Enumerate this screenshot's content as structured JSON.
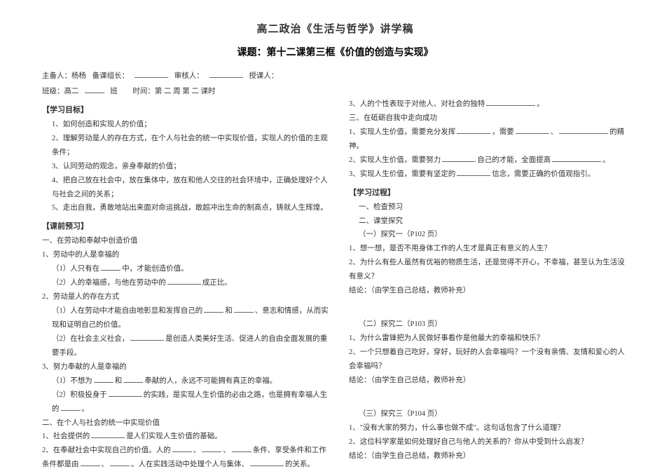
{
  "title": "高二政治《生活与哲学》讲学稿",
  "subtitle": "课题：第十二课第三框《价值的创造与实现》",
  "meta": {
    "row1_a": "主备人：杨杨",
    "row1_b": "备课组长：",
    "row1_c": "审核人：",
    "row1_d": "授课人：",
    "row2_a": "班级：高二",
    "row2_b": "班",
    "row2_c": "时间：第 二 周   第  二  课时"
  },
  "left": {
    "h_goal": "【学习目标】",
    "g1": "1、如何创造和实现人的价值；",
    "g2": "2、理解劳动是人的存在方式，在个人与社会的统一中实现价值，实现人的价值的主观条件；",
    "g3": "3、认同劳动的观念，亲身奉献的价值；",
    "g4": "4、把自己放在社会中，放在集体中，放在和他人交往的社会环境中，正确处理好个人与社会之间的关系；",
    "g5": "5、走出自我，勇敢地站出来面对命运挑战，敢超冲出生命的制高点，铸就人生辉煌。",
    "h_pre": "【课前预习】",
    "s1": "一、在劳动和奉献中创造价值",
    "s1_1": "1、劳动中的人是幸福的",
    "s1_1_1": "（1）人只有在",
    "s1_1_1b": "中，才能创造价值。",
    "s1_1_2a": "（2）人的幸福感，与他在劳动中的",
    "s1_1_2b": "成正比。",
    "s1_2": "2、劳动是人的存在方式",
    "s1_2_1a": "（1）人在劳动中才能自由地彰显和发挥自己的",
    "s1_2_1b": "和",
    "s1_2_1c": "、意志和情感，从而实现和证明自己的价值。",
    "s1_2_2a": "（2）在社会主义社会，",
    "s1_2_2b": "是创造人类美好生活、促进人的自由全面发展的重要手段。",
    "s1_3": "3、努力奉献的人是幸福的",
    "s1_3_1a": "（1）不想为",
    "s1_3_1b": "和",
    "s1_3_1c": "奉献的人，永远不可能拥有真正的幸福。",
    "s1_3_2a": "（2）积极投身于",
    "s1_3_2b": "的实践，是实现人生价值的必由之路，也是拥有幸福人生的",
    "s1_3_2c": "。",
    "s2": "二、在个人与社会的统一中实现价值",
    "s2_1a": "1、社会提供的",
    "s2_1b": "是人们实现人生价值的基础。",
    "s2_2a": "2、在奉献社会中实现自己的价值。人的",
    "s2_2b": "、",
    "s2_2c": "、",
    "s2_2d": "条件、享受条件和工作条件都是由",
    "s2_2e": "、",
    "s2_2f": "。人在实践活动中处理个人与集体、",
    "s2_2g": "的关系。"
  },
  "right": {
    "r3a": "3、人的个性表现于对他人、对社会的独特",
    "r3b": "。",
    "h3": "三、在砥砺自我中走向成功",
    "r3_1a": "1、实现人生价值，需要充分发挥",
    "r3_1b": "，需要",
    "r3_1c": "、",
    "r3_1d": "的精神。",
    "r3_2a": "2、实现人生价值，需要努力",
    "r3_2b": "自己的才能，全面提高",
    "r3_2c": "。",
    "r3_3a": "3、实现人生价值，需要有坚定的",
    "r3_3b": "信念，需要正确的价值观指引。",
    "h_proc": "【学习过程】",
    "p1": "一、检查预习",
    "p2": "二、课堂探究",
    "ex1": "（一）探究一（P102 页）",
    "ex1_1": "1、想一想，是否不用身体工作的人生才是真正有意义的人生？",
    "ex1_2": "2、为什么有些人虽然有优裕的物质生活，还是觉得不开心，不幸福，甚至认为生活没有意义？",
    "ex1_c": "结论：（由学生自己总结，教师补充）",
    "ex2": "（二）探究二（P103 页）",
    "ex2_1": "1、为什么雷锋把为人民做好事看作是他最大的幸福和快乐？",
    "ex2_2": "2、一个只想着自己吃好，穿好，玩好的人会幸福吗？一个没有亲情、友情和爱心的人会幸福吗？",
    "ex2_c": "结论：（由学生自己总结，教师补充）",
    "ex3": "（三）探究三（P104 页）",
    "ex3_1": "1、\"没有大家的努力，什么事也做不成\"。这句话包含了什么道理？",
    "ex3_2": "2、这位科学家是如何处理好自己与他人的关系的？你从中受到什么启发？",
    "ex3_c": "结论：（由学生自己总结，教师补充）"
  }
}
